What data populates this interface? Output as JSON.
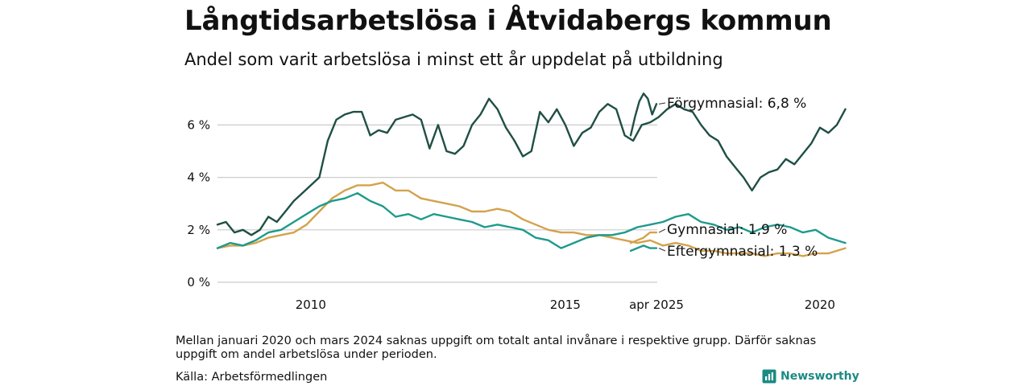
{
  "header": {
    "title": "Långtidsarbetslösa i Åtvidabergs kommun",
    "subtitle": "Andel som varit arbetslösa i minst ett år uppdelat på utbildning"
  },
  "footer": {
    "note": "Mellan januari 2020 och mars 2024 saknas uppgift om totalt antal invånare i respektive grupp. Därför saknas uppgift om andel arbetslösa under perioden.",
    "source": "Källa: Arbetsförmedlingen",
    "brand": "Newsworthy"
  },
  "colors": {
    "fogymnasial": "#1f4f45",
    "gymnasial": "#d4a24c",
    "eftergymnasial": "#1e9a8c",
    "grid": "#cccccc",
    "brand": "#1b8a84"
  },
  "chart_data": {
    "type": "line",
    "y_unit": "%",
    "ylim": [
      0,
      7.5
    ],
    "y_ticks": [
      {
        "value": 0,
        "label": "0 %"
      },
      {
        "value": 2,
        "label": "2 %"
      },
      {
        "value": 4,
        "label": "4 %"
      },
      {
        "value": 6,
        "label": "6 %"
      }
    ],
    "x_ticks": [
      "2010",
      "2015",
      "2020",
      "apr 2025"
    ],
    "grid": "horizontal",
    "series": [
      {
        "name": "Förgymnasial",
        "end_label": "Förgymnasial: 6,8 %",
        "color": "#1f4f45",
        "segments": [
          [
            [
              "2008-03",
              2.2
            ],
            [
              "2008-05",
              2.3
            ],
            [
              "2008-07",
              1.9
            ],
            [
              "2008-09",
              2.0
            ],
            [
              "2008-11",
              1.8
            ],
            [
              "2009-01",
              2.0
            ],
            [
              "2009-03",
              2.5
            ],
            [
              "2009-05",
              2.3
            ],
            [
              "2009-07",
              2.7
            ],
            [
              "2009-09",
              3.1
            ],
            [
              "2009-11",
              3.4
            ],
            [
              "2010-01",
              3.7
            ],
            [
              "2010-03",
              4.0
            ],
            [
              "2010-05",
              5.4
            ],
            [
              "2010-07",
              6.2
            ],
            [
              "2010-09",
              6.4
            ],
            [
              "2010-11",
              6.5
            ],
            [
              "2011-01",
              6.5
            ],
            [
              "2011-03",
              5.6
            ],
            [
              "2011-05",
              5.8
            ],
            [
              "2011-07",
              5.7
            ],
            [
              "2011-09",
              6.2
            ],
            [
              "2011-11",
              6.3
            ],
            [
              "2012-01",
              6.4
            ],
            [
              "2012-03",
              6.2
            ],
            [
              "2012-05",
              5.1
            ],
            [
              "2012-07",
              6.0
            ],
            [
              "2012-09",
              5.0
            ],
            [
              "2012-11",
              4.9
            ],
            [
              "2013-01",
              5.2
            ],
            [
              "2013-03",
              6.0
            ],
            [
              "2013-05",
              6.4
            ],
            [
              "2013-07",
              7.0
            ],
            [
              "2013-09",
              6.6
            ],
            [
              "2013-11",
              5.9
            ],
            [
              "2014-01",
              5.4
            ],
            [
              "2014-03",
              4.8
            ],
            [
              "2014-05",
              5.0
            ],
            [
              "2014-07",
              6.5
            ],
            [
              "2014-09",
              6.1
            ],
            [
              "2014-11",
              6.6
            ],
            [
              "2015-01",
              6.0
            ],
            [
              "2015-03",
              5.2
            ],
            [
              "2015-05",
              5.7
            ],
            [
              "2015-07",
              5.9
            ],
            [
              "2015-09",
              6.5
            ],
            [
              "2015-11",
              6.8
            ],
            [
              "2016-01",
              6.6
            ],
            [
              "2016-03",
              5.6
            ],
            [
              "2016-05",
              5.4
            ],
            [
              "2016-07",
              6.0
            ],
            [
              "2016-09",
              6.1
            ],
            [
              "2016-11",
              6.3
            ],
            [
              "2017-01",
              6.6
            ],
            [
              "2017-03",
              6.8
            ],
            [
              "2017-05",
              6.6
            ],
            [
              "2017-07",
              6.5
            ],
            [
              "2017-09",
              6.0
            ],
            [
              "2017-11",
              5.6
            ],
            [
              "2018-01",
              5.4
            ],
            [
              "2018-03",
              4.8
            ],
            [
              "2018-05",
              4.4
            ],
            [
              "2018-07",
              4.0
            ],
            [
              "2018-09",
              3.5
            ],
            [
              "2018-11",
              4.0
            ],
            [
              "2019-01",
              4.2
            ],
            [
              "2019-03",
              4.3
            ],
            [
              "2019-05",
              4.7
            ],
            [
              "2019-07",
              4.5
            ],
            [
              "2019-09",
              4.9
            ],
            [
              "2019-11",
              5.3
            ],
            [
              "2020-01",
              5.9
            ],
            [
              "2020-03",
              5.7
            ],
            [
              "2020-05",
              6.0
            ],
            [
              "2020-07",
              6.6
            ]
          ],
          [
            [
              "2024-04",
              5.6
            ],
            [
              "2024-06",
              6.3
            ],
            [
              "2024-08",
              6.9
            ],
            [
              "2024-10",
              7.2
            ],
            [
              "2024-12",
              7.0
            ],
            [
              "2025-02",
              6.4
            ],
            [
              "2025-04",
              6.8
            ]
          ]
        ]
      },
      {
        "name": "Gymnasial",
        "end_label": "Gymnasial: 1,9 %",
        "color": "#d4a24c",
        "segments": [
          [
            [
              "2008-03",
              1.3
            ],
            [
              "2008-06",
              1.4
            ],
            [
              "2008-09",
              1.4
            ],
            [
              "2008-12",
              1.5
            ],
            [
              "2009-03",
              1.7
            ],
            [
              "2009-06",
              1.8
            ],
            [
              "2009-09",
              1.9
            ],
            [
              "2009-12",
              2.2
            ],
            [
              "2010-03",
              2.7
            ],
            [
              "2010-06",
              3.2
            ],
            [
              "2010-09",
              3.5
            ],
            [
              "2010-12",
              3.7
            ],
            [
              "2011-03",
              3.7
            ],
            [
              "2011-06",
              3.8
            ],
            [
              "2011-09",
              3.5
            ],
            [
              "2011-12",
              3.5
            ],
            [
              "2012-03",
              3.2
            ],
            [
              "2012-06",
              3.1
            ],
            [
              "2012-09",
              3.0
            ],
            [
              "2012-12",
              2.9
            ],
            [
              "2013-03",
              2.7
            ],
            [
              "2013-06",
              2.7
            ],
            [
              "2013-09",
              2.8
            ],
            [
              "2013-12",
              2.7
            ],
            [
              "2014-03",
              2.4
            ],
            [
              "2014-06",
              2.2
            ],
            [
              "2014-09",
              2.0
            ],
            [
              "2014-12",
              1.9
            ],
            [
              "2015-03",
              1.9
            ],
            [
              "2015-06",
              1.8
            ],
            [
              "2015-09",
              1.8
            ],
            [
              "2015-12",
              1.7
            ],
            [
              "2016-03",
              1.6
            ],
            [
              "2016-06",
              1.5
            ],
            [
              "2016-09",
              1.6
            ],
            [
              "2016-12",
              1.4
            ],
            [
              "2017-03",
              1.5
            ],
            [
              "2017-06",
              1.4
            ],
            [
              "2017-09",
              1.2
            ],
            [
              "2017-12",
              1.2
            ],
            [
              "2018-03",
              1.1
            ],
            [
              "2018-06",
              1.1
            ],
            [
              "2018-09",
              1.1
            ],
            [
              "2018-12",
              1.0
            ],
            [
              "2019-03",
              1.1
            ],
            [
              "2019-06",
              1.1
            ],
            [
              "2019-09",
              1.0
            ],
            [
              "2019-12",
              1.1
            ],
            [
              "2020-03",
              1.1
            ],
            [
              "2020-07",
              1.3
            ]
          ],
          [
            [
              "2024-04",
              1.5
            ],
            [
              "2024-07",
              1.6
            ],
            [
              "2024-10",
              1.7
            ],
            [
              "2025-01",
              1.9
            ],
            [
              "2025-04",
              1.9
            ]
          ]
        ]
      },
      {
        "name": "Eftergymnasial",
        "end_label": "Eftergymnasial: 1,3 %",
        "color": "#1e9a8c",
        "segments": [
          [
            [
              "2008-03",
              1.3
            ],
            [
              "2008-06",
              1.5
            ],
            [
              "2008-09",
              1.4
            ],
            [
              "2008-12",
              1.6
            ],
            [
              "2009-03",
              1.9
            ],
            [
              "2009-06",
              2.0
            ],
            [
              "2009-09",
              2.3
            ],
            [
              "2009-12",
              2.6
            ],
            [
              "2010-03",
              2.9
            ],
            [
              "2010-06",
              3.1
            ],
            [
              "2010-09",
              3.2
            ],
            [
              "2010-12",
              3.4
            ],
            [
              "2011-03",
              3.1
            ],
            [
              "2011-06",
              2.9
            ],
            [
              "2011-09",
              2.5
            ],
            [
              "2011-12",
              2.6
            ],
            [
              "2012-03",
              2.4
            ],
            [
              "2012-06",
              2.6
            ],
            [
              "2012-09",
              2.5
            ],
            [
              "2012-12",
              2.4
            ],
            [
              "2013-03",
              2.3
            ],
            [
              "2013-06",
              2.1
            ],
            [
              "2013-09",
              2.2
            ],
            [
              "2013-12",
              2.1
            ],
            [
              "2014-03",
              2.0
            ],
            [
              "2014-06",
              1.7
            ],
            [
              "2014-09",
              1.6
            ],
            [
              "2014-12",
              1.3
            ],
            [
              "2015-03",
              1.5
            ],
            [
              "2015-06",
              1.7
            ],
            [
              "2015-09",
              1.8
            ],
            [
              "2015-12",
              1.8
            ],
            [
              "2016-03",
              1.9
            ],
            [
              "2016-06",
              2.1
            ],
            [
              "2016-09",
              2.2
            ],
            [
              "2016-12",
              2.3
            ],
            [
              "2017-03",
              2.5
            ],
            [
              "2017-06",
              2.6
            ],
            [
              "2017-09",
              2.3
            ],
            [
              "2017-12",
              2.2
            ],
            [
              "2018-03",
              2.0
            ],
            [
              "2018-06",
              2.1
            ],
            [
              "2018-09",
              1.9
            ],
            [
              "2018-12",
              2.1
            ],
            [
              "2019-03",
              2.2
            ],
            [
              "2019-06",
              2.1
            ],
            [
              "2019-09",
              1.9
            ],
            [
              "2019-12",
              2.0
            ],
            [
              "2020-03",
              1.7
            ],
            [
              "2020-07",
              1.5
            ]
          ],
          [
            [
              "2024-04",
              1.2
            ],
            [
              "2024-07",
              1.3
            ],
            [
              "2024-10",
              1.4
            ],
            [
              "2025-01",
              1.3
            ],
            [
              "2025-04",
              1.3
            ]
          ]
        ]
      }
    ]
  }
}
